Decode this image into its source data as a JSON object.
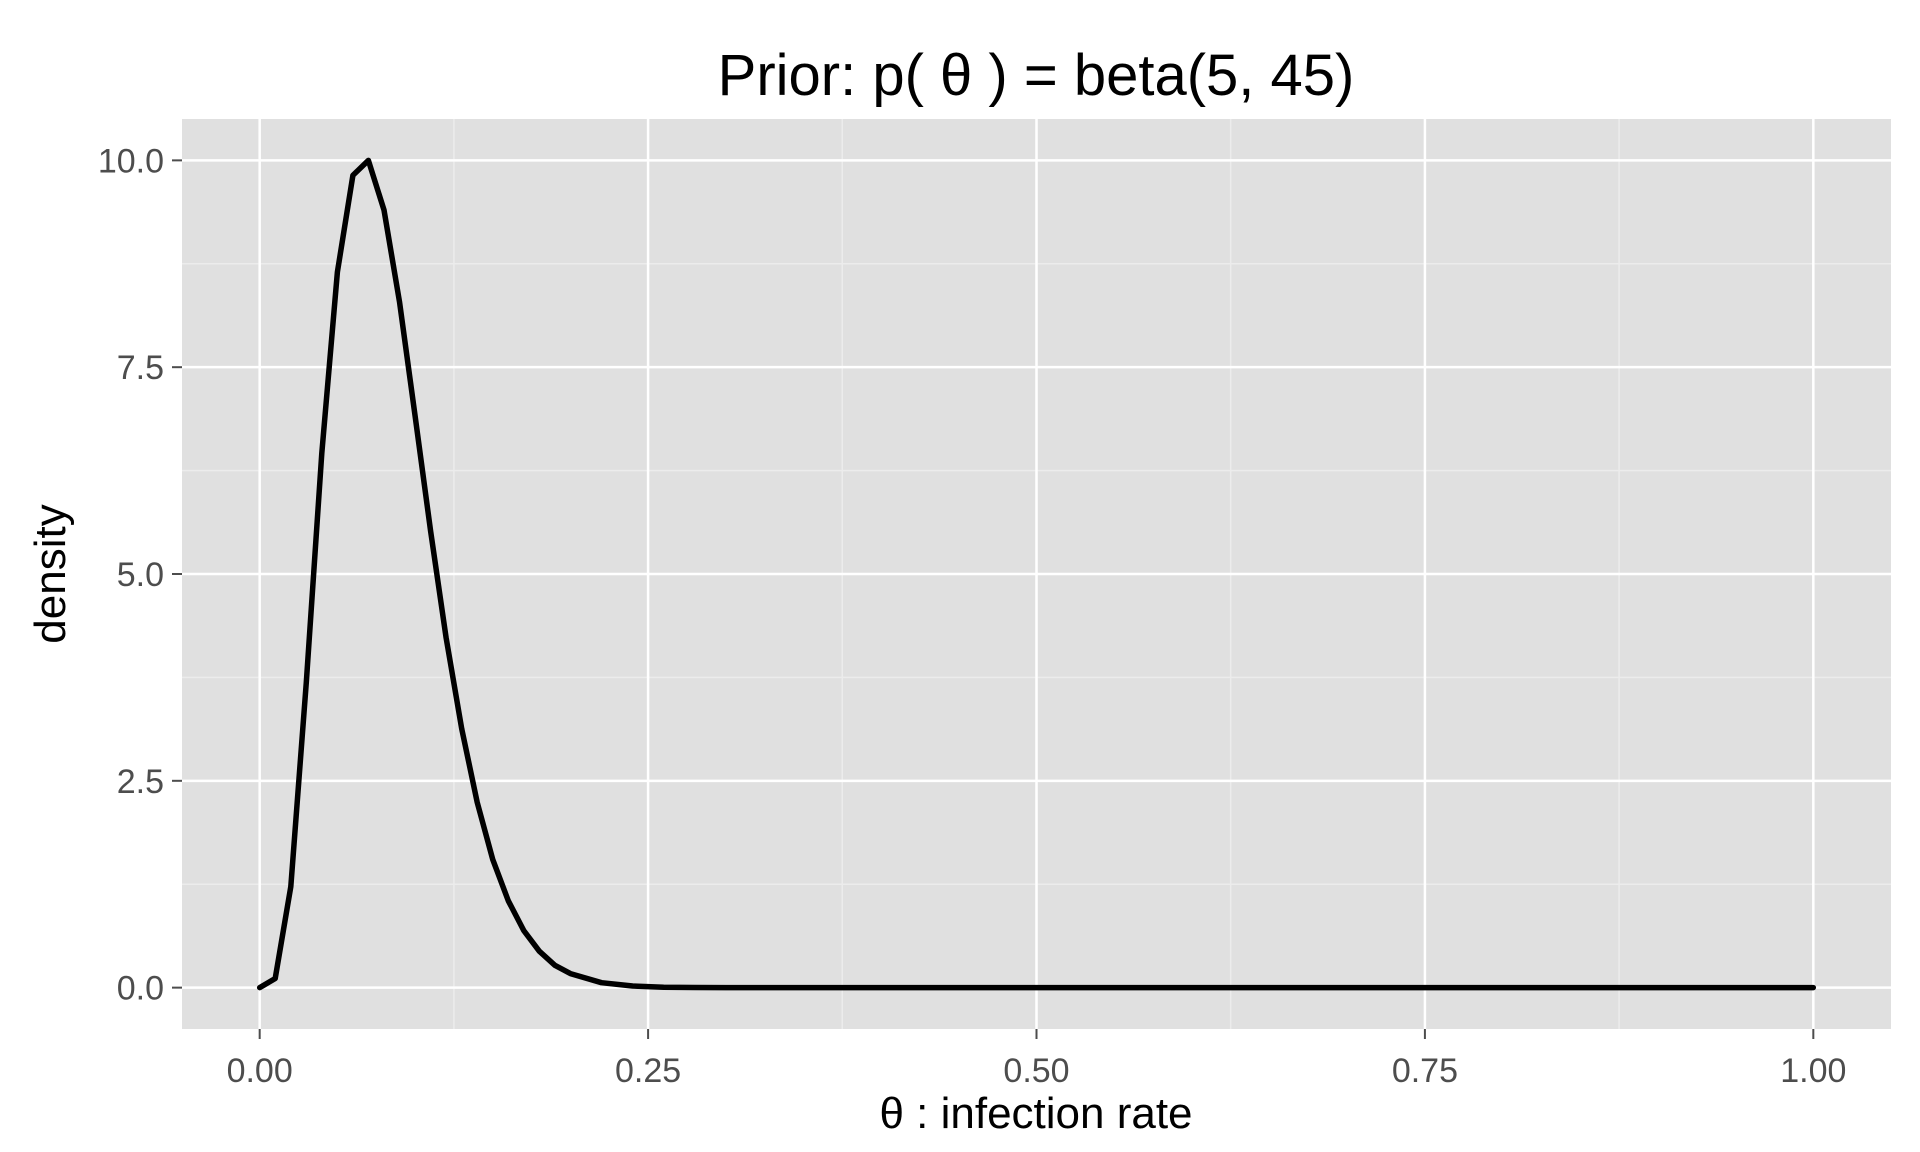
{
  "chart_data": {
    "type": "line",
    "title": "Prior: p( θ ) = beta(5, 45)",
    "xlabel": "θ : infection rate",
    "ylabel": "density",
    "xlim": [
      -0.05,
      1.05
    ],
    "ylim": [
      -0.5,
      10.5
    ],
    "x_ticks": [
      0,
      0.25,
      0.5,
      0.75,
      1.0
    ],
    "x_tick_labels": [
      "0.00",
      "0.25",
      "0.50",
      "0.75",
      "1.00"
    ],
    "y_ticks": [
      0,
      2.5,
      5,
      7.5,
      10
    ],
    "y_tick_labels": [
      "0.0",
      "2.5",
      "5.0",
      "7.5",
      "10.0"
    ],
    "grid": true,
    "series": [
      {
        "x": [
          0.0,
          0.01,
          0.02,
          0.03,
          0.04,
          0.05,
          0.06,
          0.07,
          0.08,
          0.09,
          0.1,
          0.11,
          0.12,
          0.13,
          0.14,
          0.15,
          0.16,
          0.17,
          0.18,
          0.19,
          0.2,
          0.22,
          0.24,
          0.26,
          0.28,
          0.3,
          0.33,
          0.36,
          0.4,
          0.5,
          0.6,
          0.7,
          0.8,
          0.9,
          1.0
        ],
        "values": [
          0.0,
          0.11,
          1.22,
          3.69,
          6.46,
          8.65,
          9.82,
          10.0,
          9.4,
          8.29,
          6.92,
          5.52,
          4.23,
          3.13,
          2.24,
          1.55,
          1.05,
          0.69,
          0.44,
          0.27,
          0.17,
          0.06,
          0.02,
          0.005,
          0.002,
          0.0005,
          0.0001,
          0.0,
          0.0,
          0.0,
          0.0,
          0.0,
          0.0,
          0.0,
          0.0
        ]
      }
    ],
    "colors": {
      "panel": "#e0e0e0",
      "grid_major": "#ffffff",
      "grid_minor": "#ececec",
      "line": "#000000"
    }
  }
}
